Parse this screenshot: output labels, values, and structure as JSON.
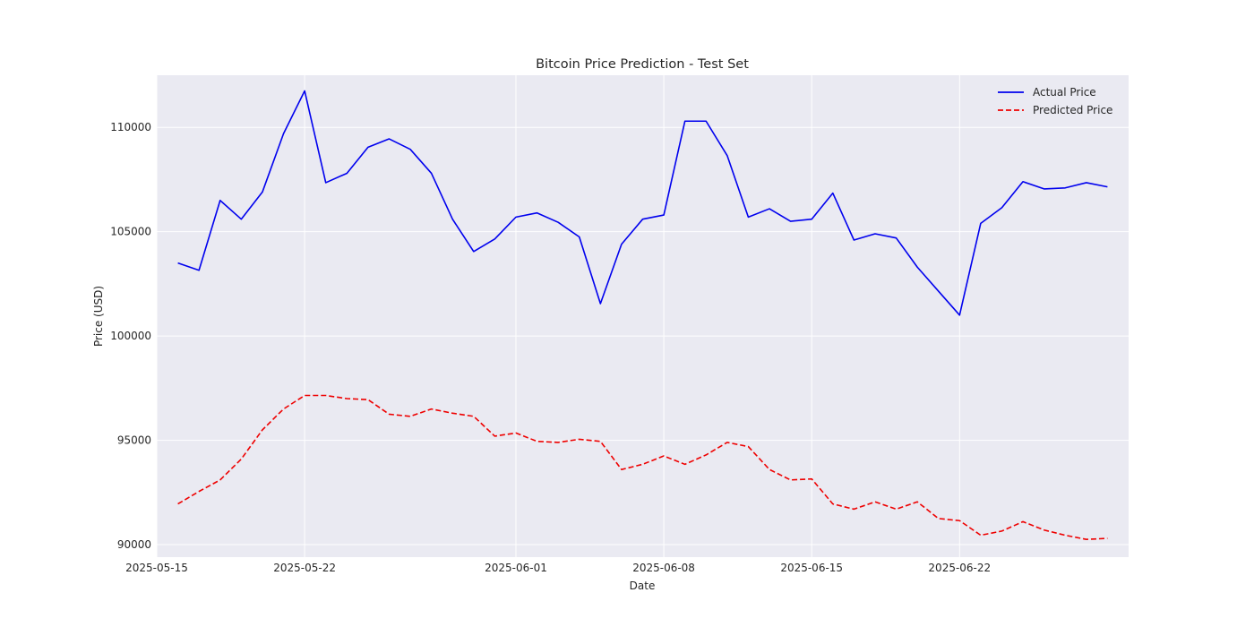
{
  "chart_data": {
    "type": "line",
    "title": "Bitcoin Price Prediction - Test Set",
    "xlabel": "Date",
    "ylabel": "Price (USD)",
    "x_axis": "date",
    "xlim": [
      "2025-05-15",
      "2025-06-30"
    ],
    "ylim": [
      89400,
      112500
    ],
    "x_ticks": [
      "2025-05-15",
      "2025-05-22",
      "2025-06-01",
      "2025-06-08",
      "2025-06-15",
      "2025-06-22"
    ],
    "y_ticks": [
      90000,
      95000,
      100000,
      105000,
      110000
    ],
    "grid": true,
    "legend_position": "top-right",
    "x": [
      "2025-05-16",
      "2025-05-17",
      "2025-05-18",
      "2025-05-19",
      "2025-05-20",
      "2025-05-21",
      "2025-05-22",
      "2025-05-23",
      "2025-05-24",
      "2025-05-25",
      "2025-05-26",
      "2025-05-27",
      "2025-05-28",
      "2025-05-29",
      "2025-05-30",
      "2025-05-31",
      "2025-06-01",
      "2025-06-02",
      "2025-06-03",
      "2025-06-04",
      "2025-06-05",
      "2025-06-06",
      "2025-06-07",
      "2025-06-08",
      "2025-06-09",
      "2025-06-10",
      "2025-06-11",
      "2025-06-12",
      "2025-06-13",
      "2025-06-14",
      "2025-06-15",
      "2025-06-16",
      "2025-06-17",
      "2025-06-18",
      "2025-06-19",
      "2025-06-20",
      "2025-06-21",
      "2025-06-22",
      "2025-06-23",
      "2025-06-24",
      "2025-06-25",
      "2025-06-26",
      "2025-06-27",
      "2025-06-28",
      "2025-06-29"
    ],
    "series": [
      {
        "name": "Actual Price",
        "color": "#0000ee",
        "dash": "solid",
        "values": [
          103500,
          103150,
          106500,
          105600,
          106900,
          109700,
          111750,
          107350,
          107800,
          109050,
          109450,
          108950,
          107800,
          105600,
          104050,
          104650,
          105700,
          105900,
          105450,
          104750,
          101550,
          104400,
          105600,
          105800,
          110300,
          110300,
          108650,
          105700,
          106100,
          105500,
          105600,
          106850,
          104600,
          104900,
          104700,
          103300,
          102150,
          101000,
          105400,
          106150,
          107400,
          107050,
          107100,
          107350,
          107150
        ]
      },
      {
        "name": "Predicted Price",
        "color": "#ee0000",
        "dash": "dashed",
        "values": [
          91950,
          92550,
          93100,
          94100,
          95500,
          96500,
          97150,
          97150,
          97000,
          96950,
          96250,
          96150,
          96500,
          96300,
          96150,
          95200,
          95350,
          94950,
          94900,
          95050,
          94950,
          93600,
          93850,
          94250,
          93850,
          94300,
          94900,
          94700,
          93600,
          93100,
          93150,
          91950,
          91700,
          92050,
          91700,
          92050,
          91250,
          91150,
          90450,
          90650,
          91100,
          90700,
          90450,
          90250,
          90300
        ]
      }
    ]
  }
}
